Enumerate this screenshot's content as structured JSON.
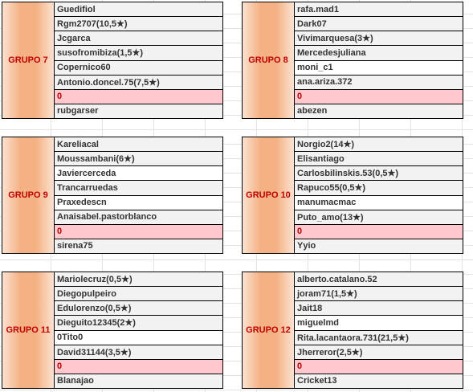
{
  "groups": [
    {
      "label": "GRUPO 7",
      "rows": [
        "Guedifiol",
        "Rgm2707(10,5★)",
        "Jcgarca",
        "susofromibiza(1,5★)",
        "Copernico60",
        "Antonio.doncel.75(7,5★)",
        "0",
        "rubgarser"
      ]
    },
    {
      "label": "GRUPO 8",
      "rows": [
        "rafa.mad1",
        "Dark07",
        "Vivimarquesa(3★)",
        "Mercedesjuliana",
        "moni_c1",
        "ana.ariza.372",
        "0",
        "abezen"
      ]
    },
    {
      "label": "GRUPO 9",
      "rows": [
        "Kareliacal",
        "Moussambani(6★)",
        "Javiercerceda",
        "Trancarruedas",
        "Praxedescn",
        "Anaisabel.pastorblanco",
        "0",
        "sirena75"
      ]
    },
    {
      "label": "GRUPO 10",
      "rows": [
        "Norgio2(14★)",
        "Elisantiago",
        "Carlosbilinskis.53(0,5★)",
        "Rapuco55(0,5★)",
        "manumacmac",
        "Puto_amo(13★)",
        "0",
        "Yyio"
      ]
    },
    {
      "label": "GRUPO 11",
      "rows": [
        "Mariolecruz(0,5★)",
        "Diegopulpeiro",
        "Edulorenzo(0,5★)",
        "Dieguito12345(2★)",
        "0Tito0",
        "David31144(3,5★)",
        "0",
        "Blanajao"
      ]
    },
    {
      "label": "GRUPO 12",
      "rows": [
        "alberto.catalano.52",
        "joram71(1,5★)",
        "Jait18",
        "miguelmd",
        "Rita.lacantaora.731(21,5★)",
        "Jherreror(2,5★)",
        "0",
        "Cricket13"
      ]
    }
  ]
}
